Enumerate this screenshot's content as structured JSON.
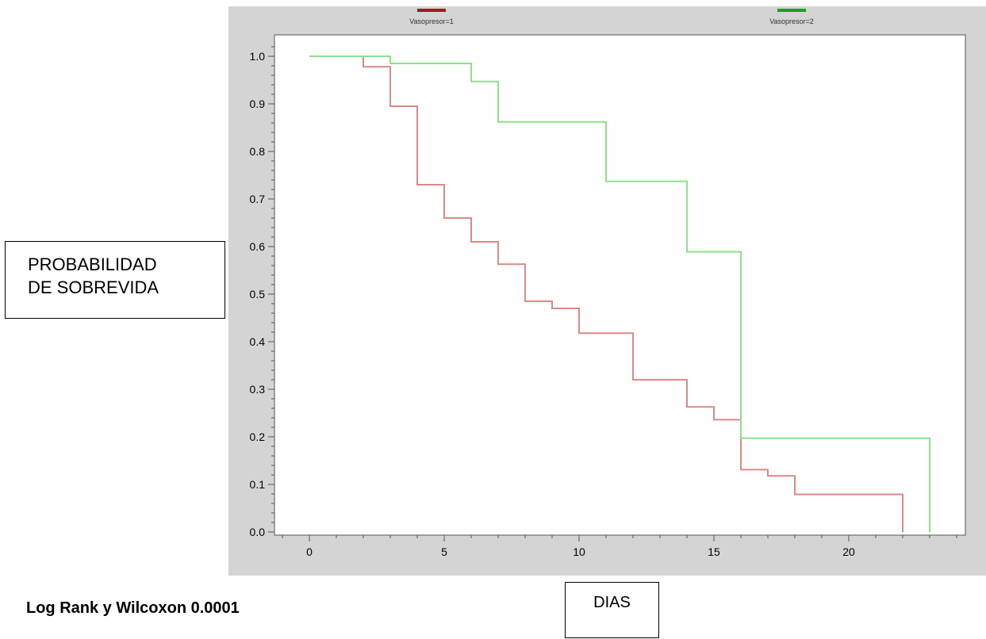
{
  "ylabel": {
    "line1": "PROBABILIDAD",
    "line2": "DE SOBREVIDA"
  },
  "xlabel": "DIAS",
  "stat_note": "Log Rank y Wilcoxon 0.0001",
  "chart_data": {
    "type": "line",
    "step": true,
    "title": "",
    "xlabel": "DIAS",
    "ylabel": "PROBABILIDAD DE SOBREVIDA",
    "xlim": [
      -1,
      24
    ],
    "ylim": [
      0,
      1.05
    ],
    "xticks": [
      0,
      5,
      10,
      15,
      20
    ],
    "yticks": [
      0.0,
      0.1,
      0.2,
      0.3,
      0.4,
      0.5,
      0.6,
      0.7,
      0.8,
      0.9,
      1.0
    ],
    "ytick_labels": [
      "0.0",
      "0.1",
      "0.2",
      "0.3",
      "0.4",
      "0.5",
      "0.6",
      "0.7",
      "0.8",
      "0.9",
      "1.0"
    ],
    "legend_position": "top",
    "grid": false,
    "series": [
      {
        "name": "Vasopresor=1",
        "color": "#d98a86",
        "legend_color": "#9e1b1b",
        "x": [
          0,
          2,
          3,
          4,
          5,
          6,
          7,
          8,
          9,
          10,
          12,
          14,
          15,
          16,
          17,
          18,
          22
        ],
        "y": [
          1.0,
          0.978,
          0.895,
          0.73,
          0.66,
          0.61,
          0.563,
          0.485,
          0.47,
          0.418,
          0.32,
          0.263,
          0.236,
          0.131,
          0.118,
          0.079,
          0.0
        ]
      },
      {
        "name": "Vasopresor=2",
        "color": "#8fe08a",
        "legend_color": "#1e9e1e",
        "x": [
          0,
          3,
          6,
          7,
          11,
          14,
          16,
          23
        ],
        "y": [
          1.0,
          0.985,
          0.947,
          0.862,
          0.737,
          0.589,
          0.197,
          0.0
        ]
      }
    ]
  }
}
